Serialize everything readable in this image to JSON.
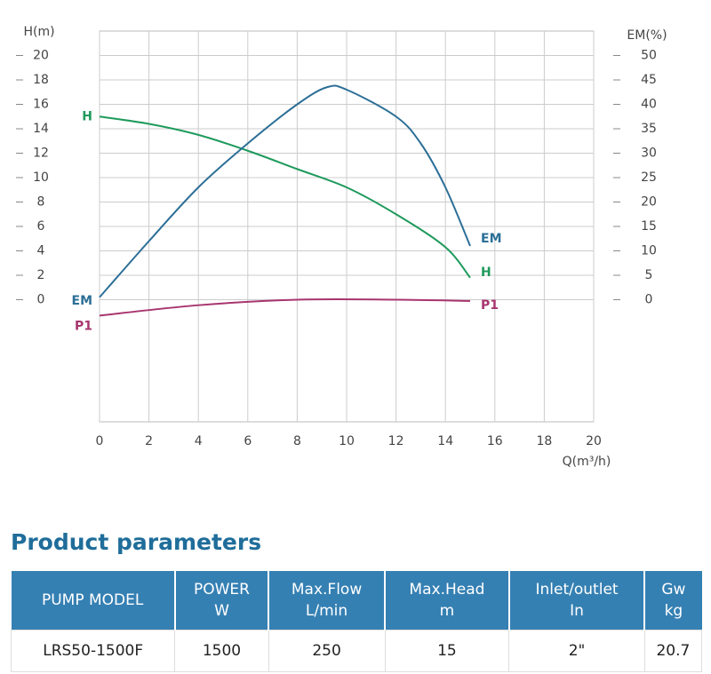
{
  "chart_data": {
    "type": "line",
    "ylabel": "H(m)",
    "y2label": "EM(%)",
    "xlabel": "Q(m³/h)",
    "xlim": [
      0,
      20
    ],
    "xticks": [
      0,
      2,
      4,
      6,
      8,
      10,
      12,
      14,
      16,
      18,
      20
    ],
    "ylim": [
      -10,
      22
    ],
    "yticks": [
      0,
      2,
      4,
      6,
      8,
      10,
      12,
      14,
      16,
      18,
      20
    ],
    "y2lim": [
      -25,
      55
    ],
    "y2ticks": [
      0,
      5,
      10,
      15,
      20,
      25,
      30,
      35,
      40,
      45,
      50
    ],
    "grid": true,
    "series": [
      {
        "name": "H",
        "color": "#1f9a5c",
        "x": [
          0,
          2,
          4,
          6,
          8,
          10,
          12,
          14,
          15
        ],
        "values": [
          15,
          14.4,
          13.5,
          12.2,
          10.7,
          9.2,
          7,
          4.3,
          1.8
        ]
      },
      {
        "name": "EM",
        "color": "#2c6f97",
        "axis": "y2",
        "x": [
          0,
          2,
          4,
          6,
          8,
          9.2,
          10,
          12,
          13,
          14,
          15
        ],
        "values": [
          0.5,
          12,
          23,
          32,
          40,
          43.5,
          43,
          37.5,
          32,
          23,
          11
        ]
      },
      {
        "name": "P1",
        "color": "#a8356f",
        "x": [
          0,
          4,
          8,
          12,
          15
        ],
        "values": [
          -1.3,
          -0.45,
          0,
          0,
          -0.1
        ]
      }
    ]
  },
  "product_parameters": {
    "title": "Product parameters",
    "headers": [
      [
        "PUMP MODEL"
      ],
      [
        "POWER",
        "W"
      ],
      [
        "Max.Flow",
        "L/min"
      ],
      [
        "Max.Head",
        "m"
      ],
      [
        "Inlet/outlet",
        "In"
      ],
      [
        "Gw",
        "kg"
      ]
    ],
    "rows": [
      [
        "LRS50-1500F",
        "1500",
        "250",
        "15",
        "2\"",
        "20.7"
      ]
    ]
  }
}
